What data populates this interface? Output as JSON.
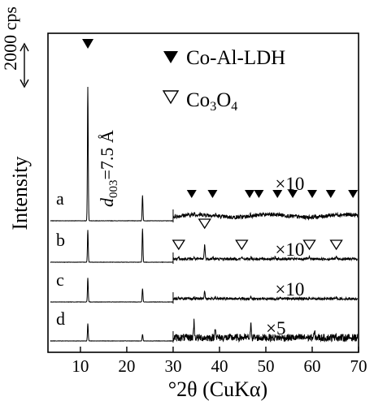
{
  "chart_data": {
    "type": "line",
    "xlabel_prefix": "°2θ (CuK",
    "xlabel_symbol": "α",
    "xlabel_suffix": ")",
    "ylabel": "Intensity",
    "xlim": [
      3,
      70
    ],
    "x_ticks": [
      10,
      20,
      30,
      40,
      50,
      60,
      70
    ],
    "scale_bar": "2000 cps",
    "d_label": {
      "italic": "d",
      "sub": "003",
      "rest": "=7.5 Å",
      "x": 13.5
    },
    "legend": [
      {
        "marker": "filled-triangle",
        "text": "Co-Al-LDH"
      },
      {
        "marker": "open-triangle",
        "text_main": "Co",
        "text_sub1": "3",
        "text_mid": "O",
        "text_sub2": "4"
      }
    ],
    "traces": [
      {
        "name": "a",
        "multiplier": "×10",
        "mult_x": 52,
        "peaks": [
          {
            "x": 11.6,
            "h": 1.0
          },
          {
            "x": 23.4,
            "h": 0.19
          },
          {
            "x": 34.5,
            "h": 0.012
          },
          {
            "x": 39.1,
            "h": 0.008
          },
          {
            "x": 46.8,
            "h": 0.01
          }
        ],
        "zoom_peaks": [
          {
            "x": 34.6,
            "h": 0.015
          },
          {
            "x": 39.2,
            "h": 0.01
          },
          {
            "x": 46.7,
            "h": 0.018
          },
          {
            "x": 48.8,
            "h": 0.012
          },
          {
            "x": 53.0,
            "h": 0.006
          },
          {
            "x": 56.5,
            "h": 0.005
          },
          {
            "x": 60.5,
            "h": 0.007
          },
          {
            "x": 65.0,
            "h": 0.005
          },
          {
            "x": 69.5,
            "h": 0.004
          }
        ],
        "ldh_markers": [
          34,
          38.5,
          46.5,
          48.5,
          52.5,
          55.8,
          60.0,
          64.0,
          68.8
        ],
        "co3o4_markers": []
      },
      {
        "name": "b",
        "multiplier": "×10",
        "mult_x": 52,
        "peaks": [
          {
            "x": 11.6,
            "h": 0.24
          },
          {
            "x": 23.4,
            "h": 0.25
          },
          {
            "x": 31.2,
            "h": 0.006
          },
          {
            "x": 36.8,
            "h": 0.02
          },
          {
            "x": 44.8,
            "h": 0.005
          },
          {
            "x": 59.4,
            "h": 0.004
          },
          {
            "x": 65.2,
            "h": 0.006
          }
        ],
        "zoom_peaks": [
          {
            "x": 31.2,
            "h": 0.014
          },
          {
            "x": 34.5,
            "h": 0.01
          },
          {
            "x": 36.8,
            "h": 0.11
          },
          {
            "x": 38.6,
            "h": 0.012
          },
          {
            "x": 44.8,
            "h": 0.016
          },
          {
            "x": 46.8,
            "h": 0.014
          },
          {
            "x": 52.0,
            "h": 0.008
          },
          {
            "x": 59.4,
            "h": 0.012
          },
          {
            "x": 65.2,
            "h": 0.02
          }
        ],
        "ldh_markers": [],
        "co3o4_markers": [
          31.2,
          36.8,
          44.8,
          59.4,
          65.2
        ]
      },
      {
        "name": "c",
        "multiplier": "×10",
        "mult_x": 52,
        "peaks": [
          {
            "x": 11.6,
            "h": 0.18
          },
          {
            "x": 23.4,
            "h": 0.1
          },
          {
            "x": 36.8,
            "h": 0.01
          }
        ],
        "zoom_peaks": [
          {
            "x": 31.2,
            "h": 0.01
          },
          {
            "x": 34.5,
            "h": 0.012
          },
          {
            "x": 36.8,
            "h": 0.06
          },
          {
            "x": 39.1,
            "h": 0.014
          },
          {
            "x": 44.8,
            "h": 0.009
          },
          {
            "x": 46.8,
            "h": 0.016
          },
          {
            "x": 53.0,
            "h": 0.008
          },
          {
            "x": 59.4,
            "h": 0.01
          },
          {
            "x": 65.2,
            "h": 0.012
          }
        ],
        "ldh_markers": [],
        "co3o4_markers": []
      },
      {
        "name": "d",
        "multiplier": "×5",
        "mult_x": 50,
        "peaks": [
          {
            "x": 11.6,
            "h": 0.13
          },
          {
            "x": 23.4,
            "h": 0.05
          }
        ],
        "zoom_peaks": [
          {
            "x": 34.5,
            "h": 0.12
          },
          {
            "x": 39.1,
            "h": 0.09
          },
          {
            "x": 46.8,
            "h": 0.1
          },
          {
            "x": 60.5,
            "h": 0.04
          },
          {
            "x": 65.0,
            "h": 0.03
          }
        ],
        "ldh_markers": [],
        "co3o4_markers": []
      }
    ]
  }
}
